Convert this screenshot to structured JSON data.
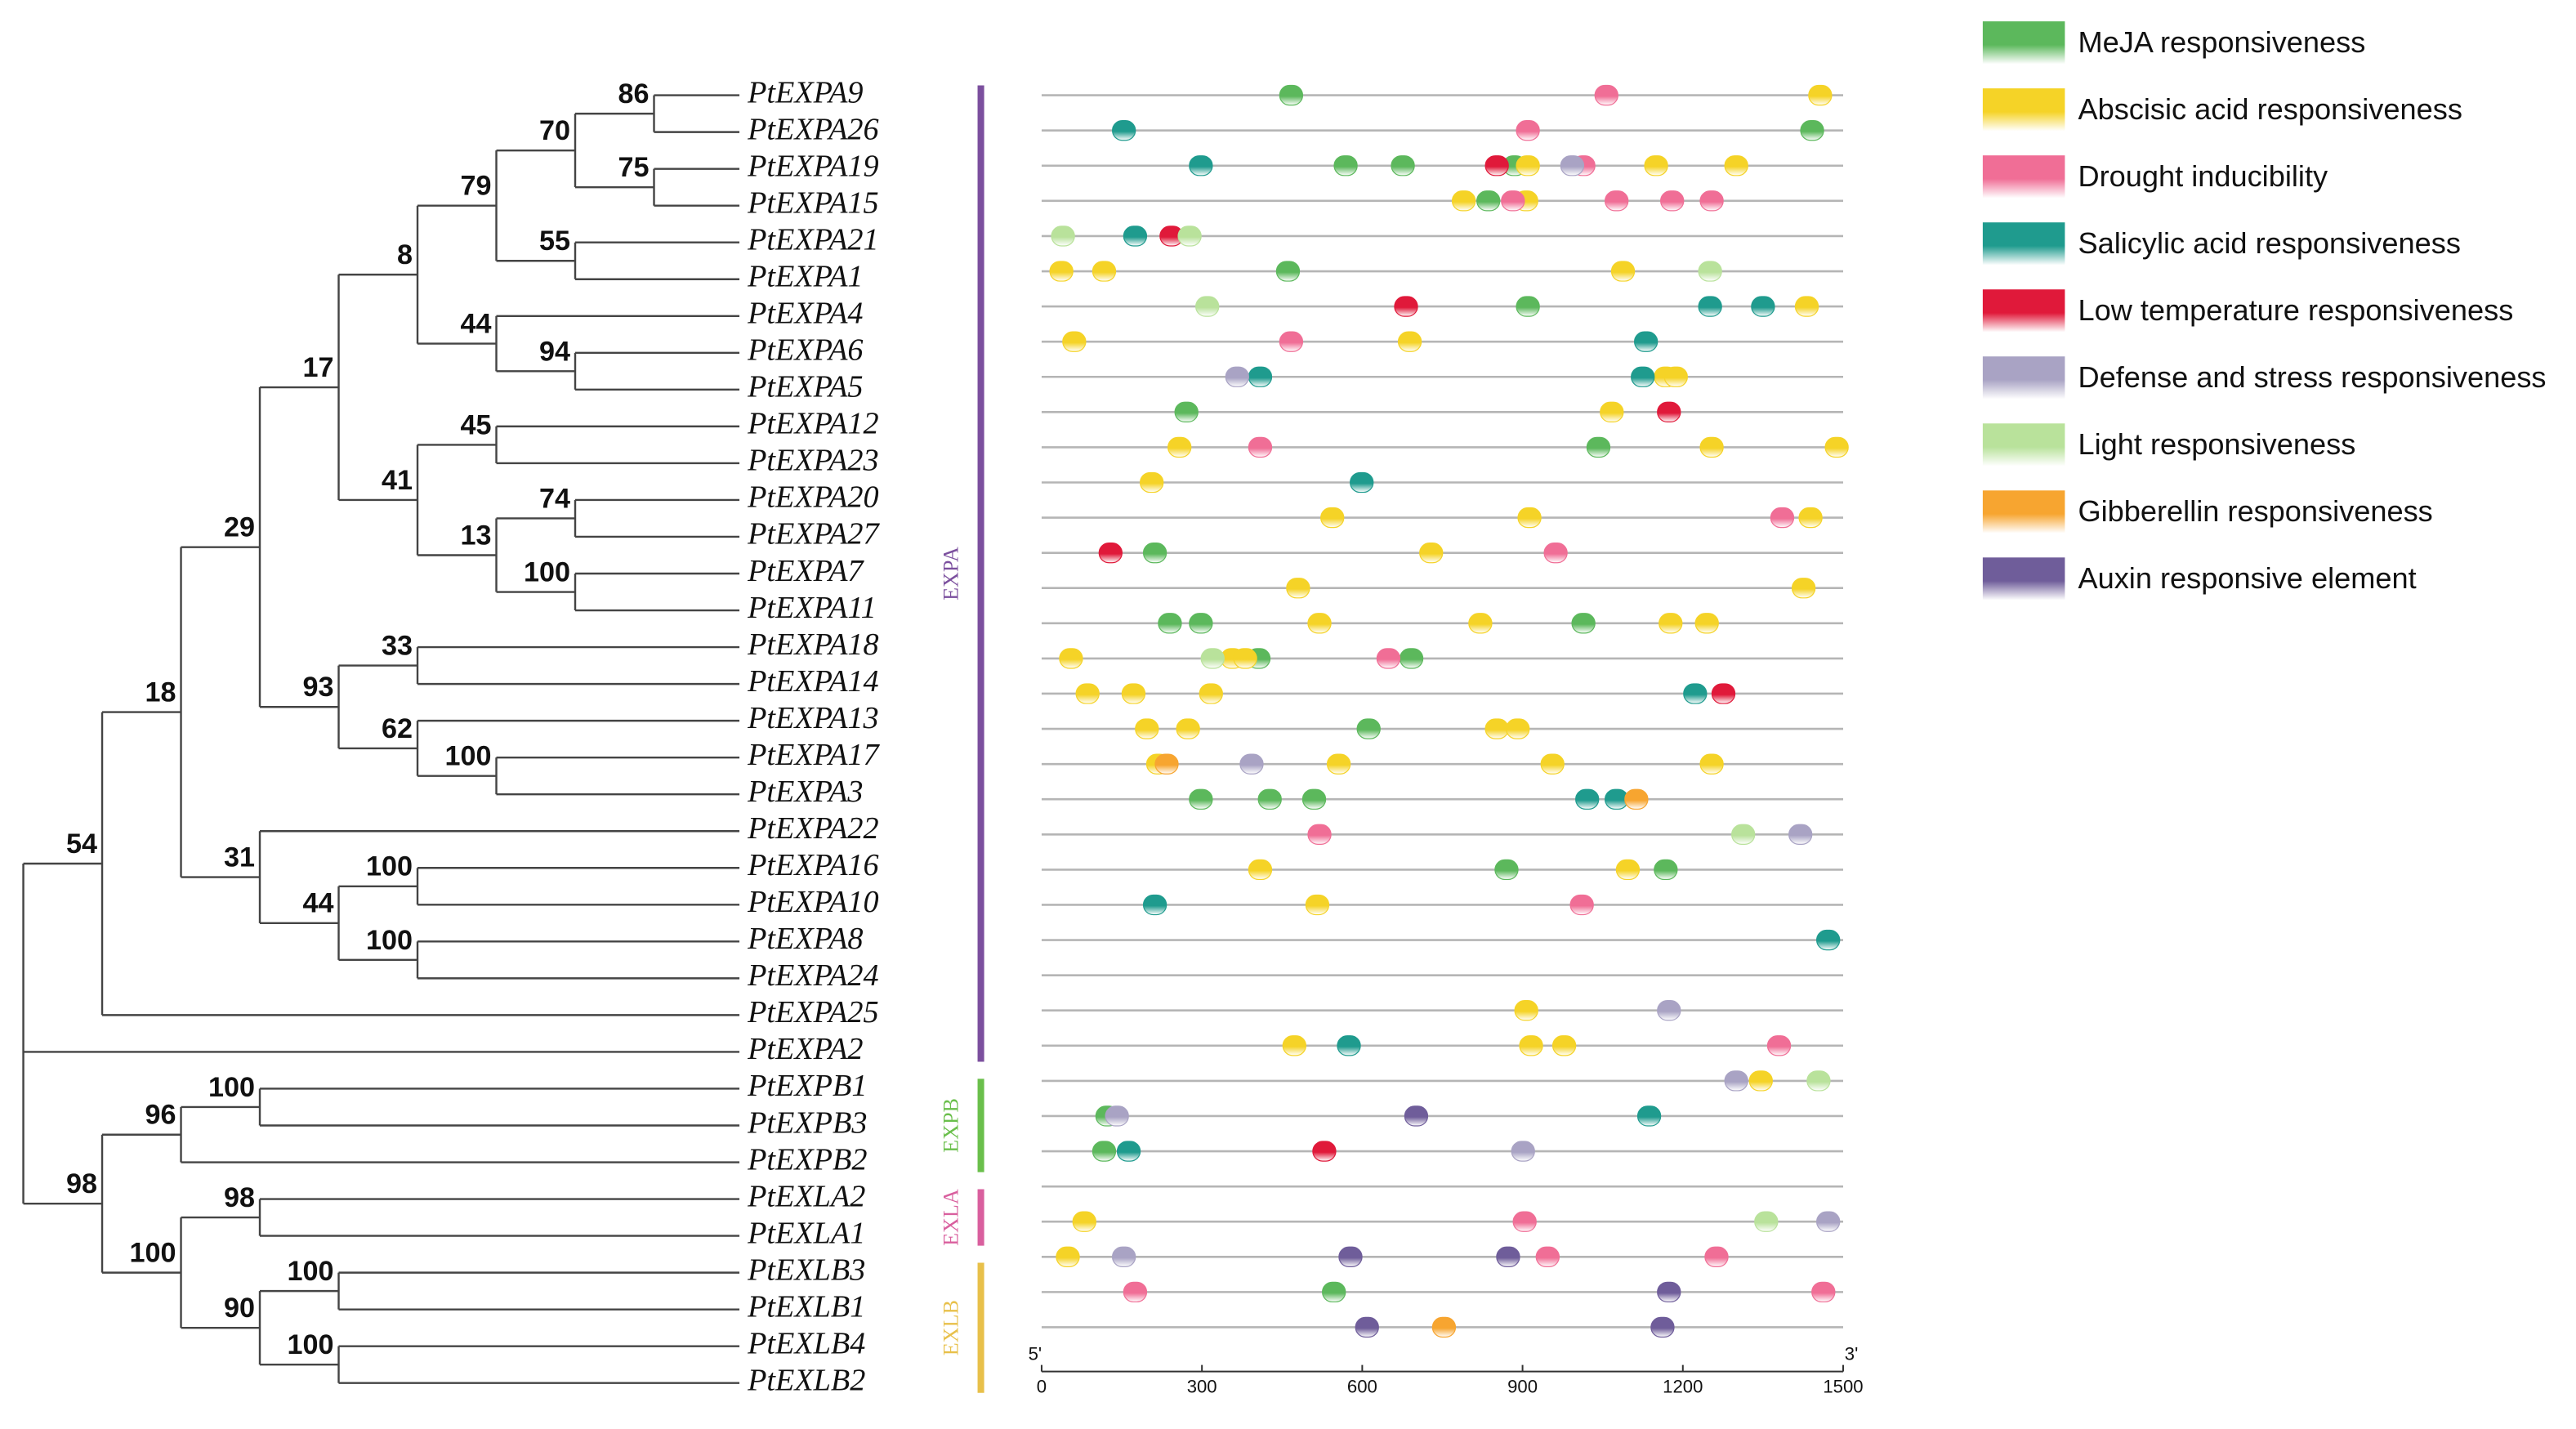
{
  "chart_data": {
    "type": "promoter-map",
    "xlim": [
      0,
      1500
    ],
    "xticks": [
      0,
      300,
      600,
      900,
      1200,
      1500
    ],
    "start_label": "5'",
    "end_label": "3'",
    "groups": [
      {
        "name": "EXPA",
        "color": "#7b4f9e"
      },
      {
        "name": "EXPB",
        "color": "#6abf4b"
      },
      {
        "name": "EXLA",
        "color": "#d95f9e"
      },
      {
        "name": "EXLB",
        "color": "#e8c04a"
      }
    ],
    "tree": {
      "children": [
        {
          "label": "54",
          "children": [
            {
              "label": "18",
              "children": [
                {
                  "label": "29",
                  "children": [
                    {
                      "label": "17",
                      "children": [
                        {
                          "label": "8",
                          "children": [
                            {
                              "label": "79",
                              "children": [
                                {
                                  "label": "70",
                                  "children": [
                                    {
                                      "label": "86",
                                      "children": [
                                        {
                                          "name": "PtEXPA9"
                                        },
                                        {
                                          "name": "PtEXPA26"
                                        }
                                      ]
                                    },
                                    {
                                      "label": "75",
                                      "children": [
                                        {
                                          "name": "PtEXPA19"
                                        },
                                        {
                                          "name": "PtEXPA15"
                                        }
                                      ]
                                    }
                                  ]
                                },
                                {
                                  "label": "55",
                                  "children": [
                                    {
                                      "name": "PtEXPA21"
                                    },
                                    {
                                      "name": "PtEXPA1"
                                    }
                                  ]
                                }
                              ]
                            },
                            {
                              "label": "44",
                              "children": [
                                {
                                  "name": "PtEXPA4"
                                },
                                {
                                  "label": "94",
                                  "children": [
                                    {
                                      "name": "PtEXPA6"
                                    },
                                    {
                                      "name": "PtEXPA5"
                                    }
                                  ]
                                }
                              ]
                            }
                          ]
                        },
                        {
                          "label": "41",
                          "children": [
                            {
                              "label": "45",
                              "children": [
                                {
                                  "name": "PtEXPA12"
                                },
                                {
                                  "name": "PtEXPA23"
                                }
                              ]
                            },
                            {
                              "label": "13",
                              "children": [
                                {
                                  "label": "74",
                                  "children": [
                                    {
                                      "name": "PtEXPA20"
                                    },
                                    {
                                      "name": "PtEXPA27"
                                    }
                                  ]
                                },
                                {
                                  "label": "100",
                                  "children": [
                                    {
                                      "name": "PtEXPA7"
                                    },
                                    {
                                      "name": "PtEXPA11"
                                    }
                                  ]
                                }
                              ]
                            }
                          ]
                        }
                      ]
                    },
                    {
                      "label": "93",
                      "children": [
                        {
                          "label": "33",
                          "children": [
                            {
                              "name": "PtEXPA18"
                            },
                            {
                              "name": "PtEXPA14"
                            }
                          ]
                        },
                        {
                          "label": "62",
                          "children": [
                            {
                              "name": "PtEXPA13"
                            },
                            {
                              "label": "100",
                              "children": [
                                {
                                  "name": "PtEXPA17"
                                },
                                {
                                  "name": "PtEXPA3"
                                }
                              ]
                            }
                          ]
                        }
                      ]
                    }
                  ]
                },
                {
                  "label": "31",
                  "children": [
                    {
                      "name": "PtEXPA22"
                    },
                    {
                      "label": "44",
                      "children": [
                        {
                          "label": "100",
                          "children": [
                            {
                              "name": "PtEXPA16"
                            },
                            {
                              "name": "PtEXPA10"
                            }
                          ]
                        },
                        {
                          "label": "100",
                          "children": [
                            {
                              "name": "PtEXPA8"
                            },
                            {
                              "name": "PtEXPA24"
                            }
                          ]
                        }
                      ]
                    }
                  ]
                }
              ]
            },
            {
              "name": "PtEXPA25"
            }
          ]
        },
        {
          "name": "PtEXPA2"
        },
        {
          "label": "98",
          "children": [
            {
              "label": "96",
              "children": [
                {
                  "label": "100",
                  "children": [
                    {
                      "name": "PtEXPB1"
                    },
                    {
                      "name": "PtEXPB3"
                    }
                  ]
                },
                {
                  "name": "PtEXPB2"
                }
              ]
            },
            {
              "label": "100",
              "children": [
                {
                  "label": "98",
                  "children": [
                    {
                      "name": "PtEXLA2"
                    },
                    {
                      "name": "PtEXLA1"
                    }
                  ]
                },
                {
                  "label": "90",
                  "children": [
                    {
                      "label": "100",
                      "children": [
                        {
                          "name": "PtEXLB3"
                        },
                        {
                          "name": "PtEXLB1"
                        }
                      ]
                    },
                    {
                      "label": "100",
                      "children": [
                        {
                          "name": "PtEXLB4"
                        },
                        {
                          "name": "PtEXLB2"
                        }
                      ]
                    }
                  ]
                }
              ]
            }
          ]
        }
      ]
    },
    "series": [
      {
        "name": "MeJA responsiveness",
        "color": "#5cb85c",
        "positions": [
          [
            467
          ],
          [
            1442
          ],
          [
            569,
            676,
            885
          ],
          [
            836
          ],
          [],
          [
            461
          ],
          [
            910
          ],
          [],
          [],
          [
            271
          ],
          [
            1042
          ],
          [],
          [],
          [
            212
          ],
          [],
          [
            240,
            298,
            1014
          ],
          [
            406,
            692
          ],
          [],
          [
            612
          ],
          [],
          [
            298,
            427,
            510
          ],
          [],
          [
            870,
            1168
          ],
          [],
          [],
          [],
          [],
          [],
          [],
          [
            123
          ],
          [
            117
          ],
          [],
          [],
          [],
          [
            547
          ],
          []
        ]
      },
      {
        "name": "Abscisic acid responsiveness",
        "color": "#f5d327",
        "positions": [
          [
            1457
          ],
          [],
          [
            910,
            1150,
            1300
          ],
          [
            790,
            907
          ],
          [],
          [
            37,
            117,
            1088
          ],
          [
            1432
          ],
          [
            61,
            689
          ],
          [
            1168,
            1187
          ],
          [
            1067
          ],
          [
            258,
            1254,
            1488
          ],
          [
            206
          ],
          [
            544,
            913,
            1439
          ],
          [
            729
          ],
          [
            480,
            1426
          ],
          [
            520,
            821,
            1177,
            1245
          ],
          [
            55,
            357,
            381
          ],
          [
            86,
            172,
            317
          ],
          [
            197,
            274,
            852,
            891
          ],
          [
            218,
            556,
            956,
            1254
          ],
          [],
          [],
          [
            409,
            1097
          ],
          [
            516
          ],
          [],
          [],
          [
            907
          ],
          [
            473,
            916,
            978
          ],
          [
            1346
          ],
          [],
          [],
          [],
          [
            80
          ],
          [
            49
          ],
          [],
          []
        ]
      },
      {
        "name": "Drought inducibility",
        "color": "#f06e96",
        "positions": [
          [
            1057
          ],
          [
            910
          ],
          [
            1014
          ],
          [
            882,
            1076,
            1180,
            1254
          ],
          [],
          [],
          [],
          [
            467
          ],
          [],
          [],
          [
            409
          ],
          [],
          [
            1386
          ],
          [
            962
          ],
          [],
          [],
          [
            649
          ],
          [],
          [],
          [],
          [],
          [
            520
          ],
          [],
          [
            1011
          ],
          [],
          [],
          [],
          [
            1380
          ],
          [],
          [],
          [],
          [],
          [
            904
          ],
          [
            947,
            1263
          ],
          [
            175,
            1463
          ],
          []
        ]
      },
      {
        "name": "Salicylic acid responsiveness",
        "color": "#1f9b8e",
        "positions": [
          [],
          [
            154
          ],
          [
            298
          ],
          [],
          [
            175
          ],
          [],
          [
            1251,
            1350
          ],
          [
            1131
          ],
          [
            409,
            1125
          ],
          [],
          [],
          [
            599
          ],
          [],
          [],
          [],
          [],
          [],
          [
            1223
          ],
          [],
          [],
          [
            1021,
            1076
          ],
          [],
          [],
          [
            212
          ],
          [
            1472
          ],
          [],
          [],
          [
            575
          ],
          [],
          [
            1137
          ],
          [
            163
          ],
          [],
          [],
          [],
          [],
          []
        ]
      },
      {
        "name": "Low temperature responsiveness",
        "color": "#e0193a",
        "positions": [
          [],
          [],
          [
            852
          ],
          [],
          [
            243
          ],
          [],
          [
            682
          ],
          [],
          [],
          [
            1174
          ],
          [],
          [],
          [],
          [
            129
          ],
          [],
          [],
          [],
          [
            1276
          ],
          [],
          [],
          [],
          [],
          [],
          [],
          [],
          [],
          [],
          [],
          [],
          [],
          [
            529
          ],
          [],
          [],
          [],
          [],
          []
        ]
      },
      {
        "name": "Defense and stress responsiveness",
        "color": "#a9a3c4",
        "positions": [
          [],
          [],
          [
            993
          ],
          [],
          [],
          [],
          [],
          [],
          [
            366
          ],
          [],
          [],
          [],
          [],
          [],
          [],
          [],
          [],
          [],
          [],
          [
            393
          ],
          [],
          [
            1420
          ],
          [],
          [],
          [],
          [],
          [
            1174
          ],
          [],
          [
            1300
          ],
          [
            141
          ],
          [
            901
          ],
          [],
          [
            1472
          ],
          [
            154
          ],
          [],
          []
        ]
      },
      {
        "name": "Light responsiveness",
        "color": "#b9e29b",
        "positions": [
          [],
          [],
          [],
          [],
          [
            40,
            277
          ],
          [
            1251
          ],
          [
            310
          ],
          [],
          [],
          [],
          [],
          [],
          [],
          [],
          [],
          [],
          [
            320
          ],
          [],
          [],
          [],
          [],
          [
            1313
          ],
          [],
          [],
          [],
          [],
          [],
          [],
          [
            1454
          ],
          [],
          [],
          [],
          [
            1356
          ],
          [],
          [],
          []
        ]
      },
      {
        "name": "Gibberellin responsiveness",
        "color": "#f7a530",
        "positions": [
          [],
          [],
          [],
          [],
          [],
          [],
          [],
          [],
          [],
          [],
          [],
          [],
          [],
          [],
          [],
          [],
          [],
          [],
          [],
          [
            234
          ],
          [
            1113
          ],
          [],
          [],
          [],
          [],
          [],
          [],
          [],
          [],
          [],
          [],
          [],
          [],
          [],
          [],
          [
            753
          ]
        ]
      },
      {
        "name": "Auxin responsive element",
        "color": "#6f5d9a",
        "positions": [
          [],
          [],
          [],
          [],
          [],
          [],
          [],
          [],
          [],
          [],
          [],
          [],
          [],
          [],
          [],
          [],
          [],
          [],
          [],
          [],
          [],
          [],
          [],
          [],
          [],
          [],
          [],
          [],
          [],
          [
            701
          ],
          [],
          [],
          [],
          [
            578,
            873
          ],
          [
            1174
          ],
          [
            609,
            1162
          ]
        ]
      }
    ]
  }
}
